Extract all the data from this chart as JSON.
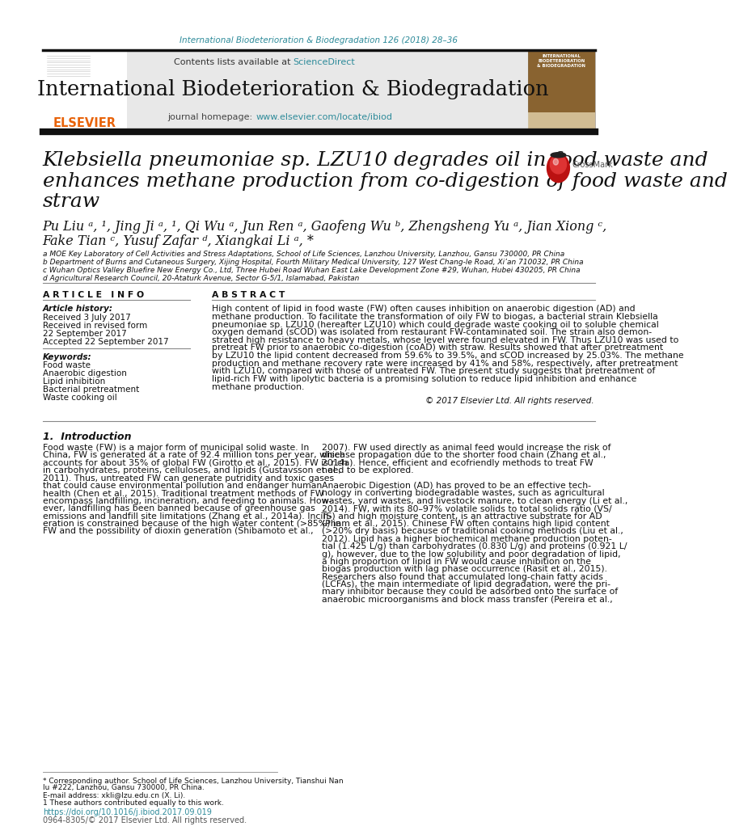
{
  "page_bg": "#ffffff",
  "header_journal_text": "International Biodeterioration & Biodegradation 126 (2018) 28–36",
  "header_journal_color": "#2e8b9a",
  "contents_text": "Contents lists available at ",
  "sciencedirect_text": "ScienceDirect",
  "sciencedirect_color": "#2e8b9a",
  "journal_title": "International Biodeterioration & Biodegradation",
  "journal_homepage_text": "journal homepage: ",
  "journal_url": "www.elsevier.com/locate/ibiod",
  "journal_url_color": "#2e8b9a",
  "paper_title_line1": "Klebsiella pneumoniae sp. LZU10 degrades oil in food waste and",
  "paper_title_line2": "enhances methane production from co-digestion of food waste and",
  "paper_title_line3": "straw",
  "affil_a": "a MOE Key Laboratory of Cell Activities and Stress Adaptations, School of Life Sciences, Lanzhou University, Lanzhou, Gansu 730000, PR China",
  "affil_b": "b Department of Burns and Cutaneous Surgery, Xijing Hospital, Fourth Military Medical University, 127 West Chang-le Road, Xi’an 710032, PR China",
  "affil_c": "c Wuhan Optics Valley Bluefire New Energy Co., Ltd, Three Hubei Road Wuhan East Lake Development Zone #29, Wuhan, Hubei 430205, PR China",
  "affil_d": "d Agricultural Research Council, 20-Ataturk Avenue, Sector G-5/1, Islamabad, Pakistan",
  "article_info_header": "A R T I C L E   I N F O",
  "article_history_label": "Article history:",
  "received_text": "Received 3 July 2017",
  "revised_line1": "Received in revised form",
  "revised_line2": "22 September 2017",
  "accepted_text": "Accepted 22 September 2017",
  "keywords_label": "Keywords:",
  "keywords": [
    "Food waste",
    "Anaerobic digestion",
    "Lipid inhibition",
    "Bacterial pretreatment",
    "Waste cooking oil"
  ],
  "abstract_header": "A B S T R A C T",
  "abstract_lines": [
    "High content of lipid in food waste (FW) often causes inhibition on anaerobic digestion (AD) and",
    "methane production. To facilitate the transformation of oily FW to biogas, a bacterial strain Klebsiella",
    "pneumoniae sp. LZU10 (hereafter LZU10) which could degrade waste cooking oil to soluble chemical",
    "oxygen demand (sCOD) was isolated from restaurant FW-contaminated soil. The strain also demon-",
    "strated high resistance to heavy metals, whose level were found elevated in FW. Thus LZU10 was used to",
    "pretreat FW prior to anaerobic co-digestion (coAD) with straw. Results showed that after pretreatment",
    "by LZU10 the lipid content decreased from 59.6% to 39.5%, and sCOD increased by 25.03%. The methane",
    "production and methane recovery rate were increased by 41% and 58%, respectively, after pretreatment",
    "with LZU10, compared with those of untreated FW. The present study suggests that pretreatment of",
    "lipid-rich FW with lipolytic bacteria is a promising solution to reduce lipid inhibition and enhance",
    "methane production."
  ],
  "copyright_text": "© 2017 Elsevier Ltd. All rights reserved.",
  "intro_header": "1.  Introduction",
  "col1_lines": [
    "Food waste (FW) is a major form of municipal solid waste. In",
    "China, FW is generated at a rate of 92.4 million tons per year, which",
    "accounts for about 35% of global FW (Girotto et al., 2015). FW is rich",
    "in carbohydrates, proteins, celluloses, and lipids (Gustavsson et al.,",
    "2011). Thus, untreated FW can generate putridity and toxic gases",
    "that could cause environmental pollution and endanger human",
    "health (Chen et al., 2015). Traditional treatment methods of FW",
    "encompass landfilling, incineration, and feeding to animals. How-",
    "ever, landfilling has been banned because of greenhouse gas",
    "emissions and landfill site limitations (Zhang et al., 2014a). Incin-",
    "eration is constrained because of the high water content (>85%) in",
    "FW and the possibility of dioxin generation (Shibamoto et al.,"
  ],
  "col2_lines": [
    "2007). FW used directly as animal feed would increase the risk of",
    "disease propagation due to the shorter food chain (Zhang et al.,",
    "2014a). Hence, efficient and ecofriendly methods to treat FW",
    "need to be explored.",
    "",
    "Anaerobic Digestion (AD) has proved to be an effective tech-",
    "nology in converting biodegradable wastes, such as agricultural",
    "wastes, yard wastes, and livestock manure, to clean energy (Li et al.,",
    "2014). FW, with its 80–97% volatile solids to total solids ratio (VS/",
    "TS) and high moisture content, is an attractive substrate for AD",
    "(Pham et al., 2015). Chinese FW often contains high lipid content",
    "(>20% dry basis) because of traditional cooking methods (Liu et al.,",
    "2012). Lipid has a higher biochemical methane production poten-",
    "tial (1.425 L/g) than carbohydrates (0.830 L/g) and proteins (0.921 L/",
    "g), however, due to the low solubility and poor degradation of lipid,",
    "a high proportion of lipid in FW would cause inhibition on the",
    "biogas production with lag phase occurrence (Rasit et al., 2015).",
    "Researchers also found that accumulated long-chain fatty acids",
    "(LCFAs), the main intermediate of lipid degradation, were the pri-",
    "mary inhibitor because they could be adsorbed onto the surface of",
    "anaerobic microorganisms and block mass transfer (Pereira et al.,"
  ],
  "footer_line1": "* Corresponding author. School of Life Sciences, Lanzhou University, Tianshui Nan",
  "footer_line2": "lu #222, Lanzhou, Gansu 730000, PR China.",
  "footer_line3": "E-mail address: xkli@lzu.edu.cn (X. Li).",
  "footer_line4": "1 These authors contributed equally to this work.",
  "doi_text": "https://doi.org/10.1016/j.ibiod.2017.09.019",
  "issn_text": "0964-8305/© 2017 Elsevier Ltd. All rights reserved.",
  "elsevier_orange": "#e8630a",
  "header_bg": "#e8e8e8",
  "teal": "#2e8b9a"
}
